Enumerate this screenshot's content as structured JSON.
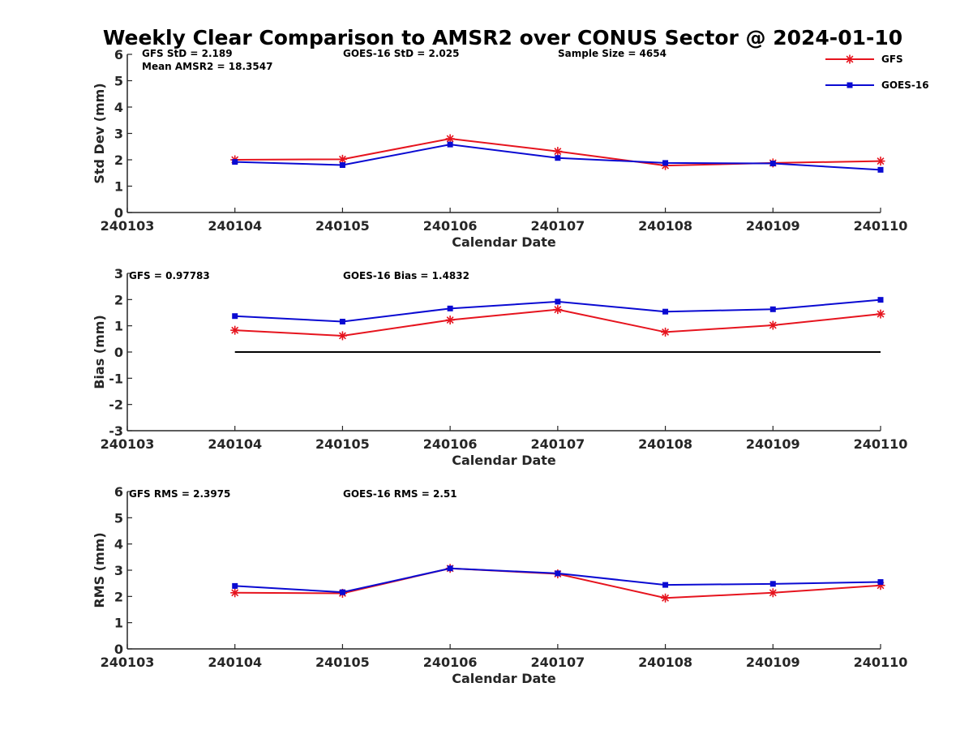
{
  "title": "Weekly Clear Comparison to AMSR2 over CONUS Sector @ 2024-01-10",
  "legend": {
    "entries": [
      {
        "label": "GFS",
        "color": "#e6141e",
        "marker": "asterisk"
      },
      {
        "label": "GOES-16",
        "color": "#0a0ad2",
        "marker": "square"
      }
    ],
    "placement": "top-right"
  },
  "chart_data": [
    {
      "type": "line",
      "xlabel": "Calendar Date",
      "ylabel": "Std Dev (mm)",
      "ylim": [
        0,
        6
      ],
      "yticks": [
        "0",
        "1",
        "2",
        "3",
        "4",
        "5",
        "6"
      ],
      "x_tick_labels": [
        "240103",
        "240104",
        "240105",
        "240106",
        "240107",
        "240108",
        "240109",
        "240110"
      ],
      "x": [
        "240104",
        "240105",
        "240106",
        "240107",
        "240108",
        "240109",
        "240110"
      ],
      "annotations": {
        "gfs": "GFS StD = 2.189",
        "mean": "Mean AMSR2 = 18.3547",
        "goes": "GOES-16 StD = 2.025",
        "sample": "Sample Size = 4654"
      },
      "series": [
        {
          "name": "GFS",
          "values": [
            2.0,
            2.02,
            2.8,
            2.32,
            1.78,
            1.88,
            1.95
          ]
        },
        {
          "name": "GOES-16",
          "values": [
            1.92,
            1.8,
            2.58,
            2.07,
            1.88,
            1.86,
            1.62
          ]
        }
      ]
    },
    {
      "type": "line",
      "xlabel": "Calendar Date",
      "ylabel": "Bias (mm)",
      "ylim": [
        -3,
        3
      ],
      "yticks": [
        "-3",
        "-2",
        "-1",
        "0",
        "1",
        "2",
        "3"
      ],
      "x_tick_labels": [
        "240103",
        "240104",
        "240105",
        "240106",
        "240107",
        "240108",
        "240109",
        "240110"
      ],
      "x": [
        "240104",
        "240105",
        "240106",
        "240107",
        "240108",
        "240109",
        "240110"
      ],
      "zero_line": true,
      "annotations": {
        "gfs": "GFS = 0.97783",
        "goes": "GOES-16 Bias  = 1.4832"
      },
      "series": [
        {
          "name": "GFS",
          "values": [
            0.83,
            0.62,
            1.22,
            1.62,
            0.76,
            1.02,
            1.45
          ]
        },
        {
          "name": "GOES-16",
          "values": [
            1.37,
            1.16,
            1.66,
            1.92,
            1.54,
            1.63,
            1.99
          ]
        }
      ]
    },
    {
      "type": "line",
      "xlabel": "Calendar Date",
      "ylabel": "RMS (mm)",
      "ylim": [
        0,
        6
      ],
      "yticks": [
        "0",
        "1",
        "2",
        "3",
        "4",
        "5",
        "6"
      ],
      "x_tick_labels": [
        "240103",
        "240104",
        "240105",
        "240106",
        "240107",
        "240108",
        "240109",
        "240110"
      ],
      "x": [
        "240104",
        "240105",
        "240106",
        "240107",
        "240108",
        "240109",
        "240110"
      ],
      "annotations": {
        "gfs": "GFS RMS = 2.3975",
        "goes": "GOES-16 RMS = 2.51"
      },
      "series": [
        {
          "name": "GFS",
          "values": [
            2.14,
            2.12,
            3.07,
            2.86,
            1.94,
            2.14,
            2.42
          ]
        },
        {
          "name": "GOES-16",
          "values": [
            2.4,
            2.16,
            3.07,
            2.88,
            2.44,
            2.48,
            2.55
          ]
        }
      ]
    }
  ]
}
